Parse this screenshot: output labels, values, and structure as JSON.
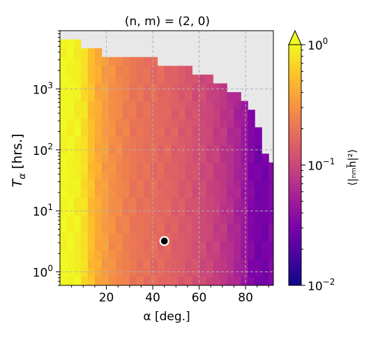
{
  "chart_data": {
    "type": "heatmap",
    "title": "(n, m) = (2, 0)",
    "xlabel": "α [deg.]",
    "ylabel_main": "T",
    "ylabel_sub": "α",
    "ylabel_unit": " [hrs.]",
    "x_range": [
      0,
      92
    ],
    "x_ticks": [
      20,
      40,
      60,
      80
    ],
    "y_scale": "log",
    "y_range": [
      0.6,
      9000
    ],
    "y_ticks": [
      {
        "value": 1,
        "base": "10",
        "exp": "0"
      },
      {
        "value": 10,
        "base": "10",
        "exp": "1"
      },
      {
        "value": 100,
        "base": "10",
        "exp": "2"
      },
      {
        "value": 1000,
        "base": "10",
        "exp": "3"
      }
    ],
    "grid": true,
    "grid_style": "dashed",
    "colormap": "plasma",
    "colorbar": {
      "label": "⟨|ₙₘh̃|²⟩",
      "scale": "log",
      "range": [
        0.01,
        1
      ],
      "ticks": [
        {
          "value": 1,
          "base": "10",
          "exp": "0"
        },
        {
          "value": 0.1,
          "base": "10",
          "exp": "−1"
        },
        {
          "value": 0.01,
          "base": "10",
          "exp": "−2"
        }
      ],
      "extend": "max"
    },
    "no_data_color": "#e8e8e8",
    "grid_cells": {
      "x_bins": 31,
      "y_bins": 29,
      "x_bin_width_deg": 3,
      "note_y": "log-spaced bins from 0.6 to 9000 hrs"
    },
    "marker": {
      "x": 45,
      "y": 3.2,
      "fill": "#000000",
      "edge": "#ffffff"
    },
    "boundary_T_max_by_alpha": [
      [
        1,
        7000
      ],
      [
        4,
        7000
      ],
      [
        7,
        6500
      ],
      [
        10,
        5500
      ],
      [
        13,
        4500
      ],
      [
        16,
        4200
      ],
      [
        19,
        3800
      ],
      [
        22,
        3600
      ],
      [
        25,
        3500
      ],
      [
        28,
        3400
      ],
      [
        31,
        3300
      ],
      [
        34,
        3200
      ],
      [
        37,
        3100
      ],
      [
        40,
        2900
      ],
      [
        43,
        2800
      ],
      [
        46,
        2700
      ],
      [
        49,
        2600
      ],
      [
        52,
        2300
      ],
      [
        55,
        2200
      ],
      [
        58,
        2000
      ],
      [
        61,
        1800
      ],
      [
        64,
        1700
      ],
      [
        67,
        1400
      ],
      [
        70,
        1200
      ],
      [
        73,
        1000
      ],
      [
        76,
        900
      ],
      [
        79,
        800
      ],
      [
        82,
        450
      ],
      [
        85,
        250
      ],
      [
        88,
        100
      ],
      [
        91,
        70
      ]
    ],
    "value_profile_by_alpha": [
      [
        1,
        1.0
      ],
      [
        4,
        0.98
      ],
      [
        7,
        0.92
      ],
      [
        10,
        0.8
      ],
      [
        13,
        0.55
      ],
      [
        16,
        0.42
      ],
      [
        19,
        0.36
      ],
      [
        22,
        0.3
      ],
      [
        25,
        0.27
      ],
      [
        28,
        0.24
      ],
      [
        31,
        0.21
      ],
      [
        34,
        0.2
      ],
      [
        37,
        0.19
      ],
      [
        40,
        0.18
      ],
      [
        43,
        0.17
      ],
      [
        46,
        0.165
      ],
      [
        49,
        0.15
      ],
      [
        52,
        0.14
      ],
      [
        55,
        0.13
      ],
      [
        58,
        0.12
      ],
      [
        61,
        0.11
      ],
      [
        64,
        0.1
      ],
      [
        67,
        0.09
      ],
      [
        70,
        0.08
      ],
      [
        73,
        0.07
      ],
      [
        76,
        0.06
      ],
      [
        79,
        0.05
      ],
      [
        82,
        0.035
      ],
      [
        85,
        0.03
      ],
      [
        88,
        0.028
      ],
      [
        91,
        0.035
      ]
    ]
  }
}
